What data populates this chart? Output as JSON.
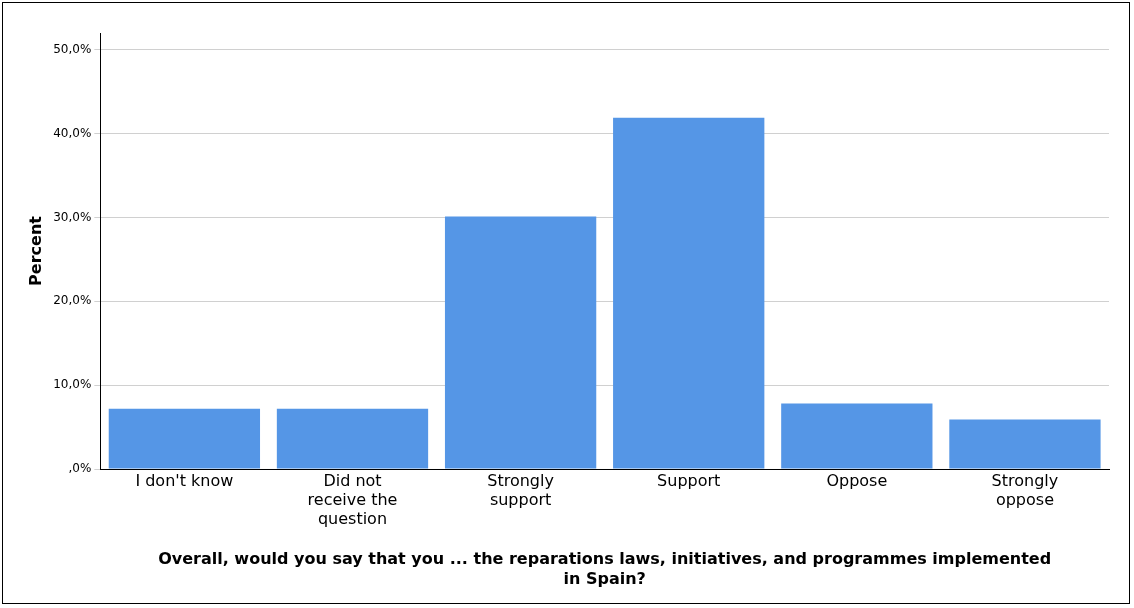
{
  "chart_data": {
    "type": "bar",
    "xlabel": "Overall, would you say that you ... the reparations laws, initiatives, and programmes implemented in Spain?",
    "ylabel": "Percent",
    "categories": [
      "I don't know",
      "Did not receive the question",
      "Strongly support",
      "Support",
      "Oppose",
      "Strongly oppose"
    ],
    "values": [
      7.2,
      7.2,
      30.1,
      41.9,
      7.8,
      5.9
    ],
    "color": "#5596e6",
    "ylim": [
      0,
      52
    ],
    "yticks": [
      {
        "value": 0,
        "label": ",0%"
      },
      {
        "value": 10,
        "label": "10,0%"
      },
      {
        "value": 20,
        "label": "20,0%"
      },
      {
        "value": 30,
        "label": "30,0%"
      },
      {
        "value": 40,
        "label": "40,0%"
      },
      {
        "value": 50,
        "label": "50,0%"
      }
    ],
    "grid": "y",
    "legend": false
  }
}
